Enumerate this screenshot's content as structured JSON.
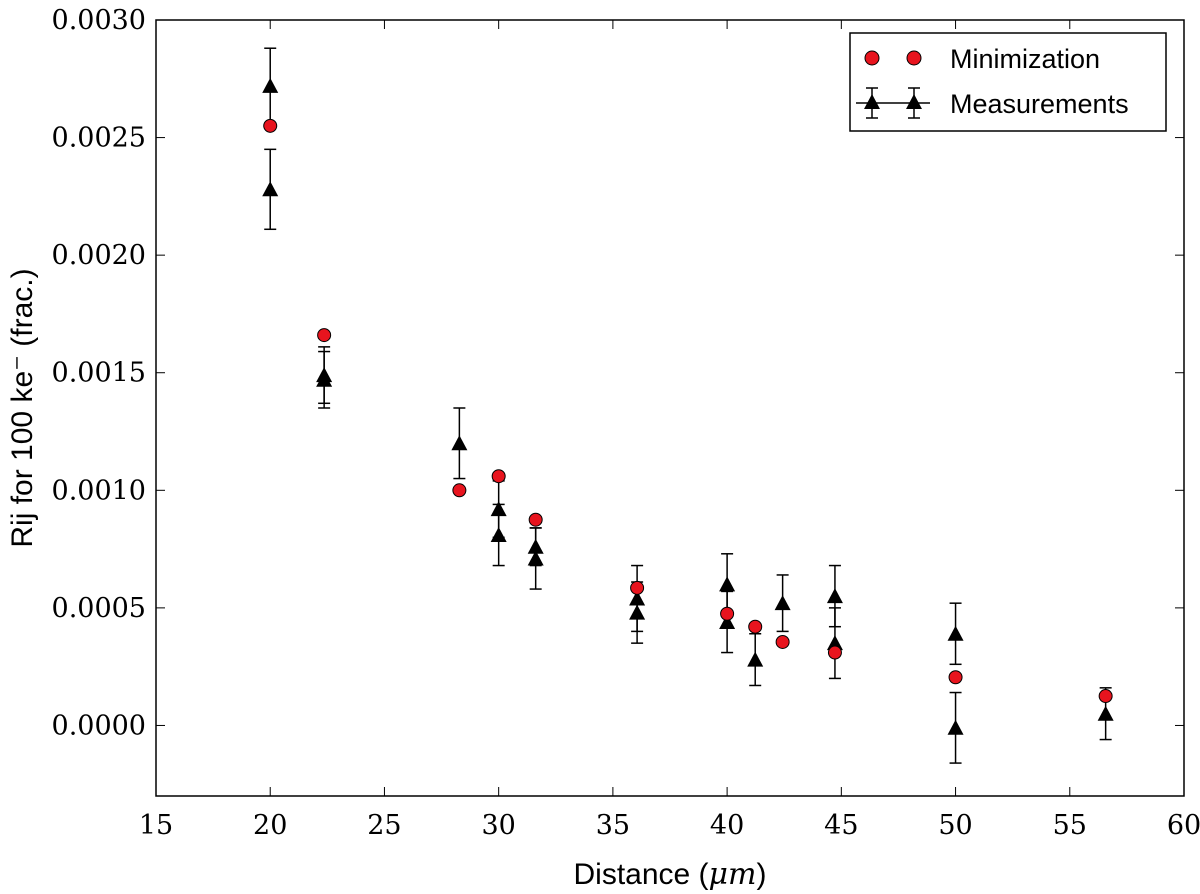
{
  "chart_data": {
    "type": "scatter",
    "title": "",
    "xlabel": "Distance (μm)",
    "xlabel_prefix": "Distance (",
    "xlabel_unit": "μm",
    "xlabel_suffix": ")",
    "ylabel": "Rij for 100 ke⁻ (frac.)",
    "xlim": [
      15,
      60
    ],
    "ylim": [
      -0.0003,
      0.003
    ],
    "xticks": [
      15,
      20,
      25,
      30,
      35,
      40,
      45,
      50,
      55,
      60
    ],
    "xtick_labels": [
      "15",
      "20",
      "25",
      "30",
      "35",
      "40",
      "45",
      "50",
      "55",
      "60"
    ],
    "yticks": [
      0.0,
      0.0005,
      0.001,
      0.0015,
      0.002,
      0.0025,
      0.003
    ],
    "ytick_labels": [
      "0.0000",
      "0.0005",
      "0.0010",
      "0.0015",
      "0.0020",
      "0.0025",
      "0.0030"
    ],
    "legend_position": "top-right",
    "series": [
      {
        "name": "Minimization",
        "marker": "circle",
        "color": "#e8141e",
        "x": [
          20.0,
          22.36,
          28.28,
          30.0,
          31.62,
          36.06,
          40.0,
          41.23,
          42.43,
          44.72,
          50.0,
          56.57
        ],
        "y": [
          0.00255,
          0.00166,
          0.001,
          0.00106,
          0.000875,
          0.000585,
          0.000475,
          0.00042,
          0.000355,
          0.00031,
          0.000205,
          0.000125
        ]
      },
      {
        "name": "Measurements",
        "marker": "triangle",
        "color": "#000000",
        "x": [
          20.0,
          20.0,
          22.36,
          22.36,
          28.28,
          30.0,
          30.0,
          31.62,
          31.62,
          36.06,
          36.06,
          40.0,
          40.0,
          41.23,
          42.43,
          44.72,
          44.72,
          50.0,
          50.0,
          56.57
        ],
        "y": [
          0.00272,
          0.00228,
          0.00149,
          0.00147,
          0.0012,
          0.00092,
          0.00081,
          0.00076,
          0.00071,
          0.00054,
          0.00048,
          0.0006,
          0.00044,
          0.00028,
          0.00052,
          0.00055,
          0.00035,
          0.00039,
          -1e-05,
          5e-05
        ],
        "err": [
          0.00016,
          0.00017,
          0.00012,
          0.00012,
          0.00015,
          0.00012,
          0.00013,
          8e-05,
          0.00013,
          0.00014,
          0.00013,
          0.00013,
          0.00013,
          0.00011,
          0.00012,
          0.00013,
          0.00015,
          0.00013,
          0.00015,
          0.00011
        ]
      }
    ]
  },
  "colors": {
    "minimization_fill": "#e8141e",
    "marker_stroke": "#000000",
    "background": "#ffffff"
  }
}
